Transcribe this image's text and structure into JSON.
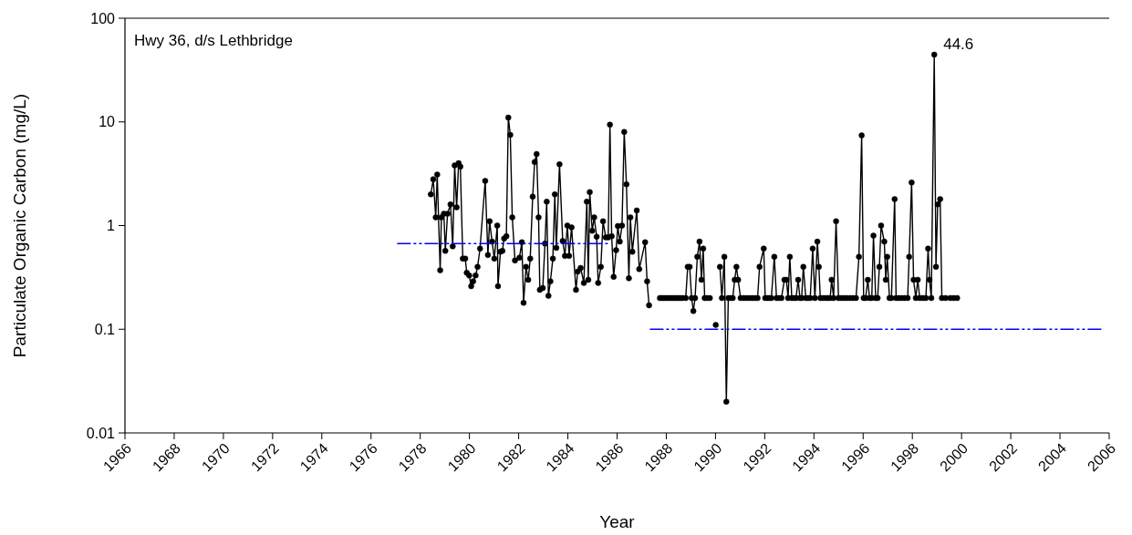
{
  "chart_data": {
    "type": "line",
    "xlabel": "Year",
    "ylabel": "Particulate Organic Carbon (mg/L)",
    "log": "y",
    "xlim": [
      1966,
      2006
    ],
    "xticks": [
      1966,
      1968,
      1970,
      1972,
      1974,
      1976,
      1978,
      1980,
      1982,
      1984,
      1986,
      1988,
      1990,
      1992,
      1994,
      1996,
      1998,
      2000,
      2002,
      2004,
      2006
    ],
    "ylim": [
      0.01,
      100
    ],
    "yticks": [
      0.01,
      0.1,
      1,
      10,
      100
    ],
    "annotations": [
      "Hwy 36, d/s Lethbridge",
      {
        "text": "44.6",
        "x": 1998.89,
        "y": 44.6
      }
    ],
    "series": [
      {
        "color": "#000000",
        "marker": "circle",
        "line_style": "solid",
        "x": [
          1978.43,
          1978.53,
          1978.63,
          1978.69,
          1978.81,
          1978.86,
          1978.96,
          1979.02,
          1979.11,
          1979.23,
          1979.32,
          1979.4,
          1979.48,
          1979.56,
          1979.63,
          1979.73,
          1979.83,
          1979.89,
          1979.99,
          1980.07,
          1980.15,
          1980.25,
          1980.33,
          1980.43,
          1980.64,
          1980.75,
          1980.82,
          1980.92,
          1981.01,
          1981.13,
          1981.16,
          1981.26,
          1981.34,
          1981.41,
          1981.5,
          1981.58,
          1981.66,
          1981.74,
          1981.85,
          1982.03,
          1982.13,
          1982.2,
          1982.3,
          1982.39,
          1982.47,
          1982.57,
          1982.65,
          1982.73,
          1982.81,
          1982.86,
          1982.98,
          1983.07,
          1983.14,
          1983.21,
          1983.29,
          1983.39,
          1983.47,
          1983.53,
          1983.66,
          1983.79,
          1983.88,
          1983.98,
          1984.05,
          1984.15,
          1984.33,
          1984.4,
          1984.52,
          1984.65,
          1984.77,
          1984.83,
          1984.89,
          1984.99,
          1985.07,
          1985.17,
          1985.23,
          1985.34,
          1985.43,
          1985.54,
          1985.64,
          1985.71,
          1985.78,
          1985.86,
          1985.96,
          1986.03,
          1986.11,
          1986.2,
          1986.29,
          1986.38,
          1986.48,
          1986.54,
          1986.62,
          1986.8,
          1986.9,
          1987.14,
          1987.22,
          1987.3,
          1987.5,
          1987.74,
          1987.82,
          1987.9,
          1987.99,
          1988.07,
          1988.16,
          1988.24,
          1988.32,
          1988.41,
          1988.49,
          1988.57,
          1988.66,
          1988.79,
          1988.87,
          1988.95,
          1989.03,
          1989.1,
          1989.17,
          1989.26,
          1989.35,
          1989.43,
          1989.5,
          1989.56,
          1989.66,
          1989.77,
          1989.9,
          1990.01,
          1990.1,
          1990.18,
          1990.26,
          1990.36,
          1990.44,
          1990.52,
          1990.61,
          1990.7,
          1990.78,
          1990.85,
          1990.92,
          1991.02,
          1991.14,
          1991.26,
          1991.38,
          1991.5,
          1991.62,
          1991.71,
          1991.79,
          1991.96,
          1992.02,
          1992.1,
          1992.18,
          1992.27,
          1992.39,
          1992.48,
          1992.58,
          1992.68,
          1992.8,
          1992.88,
          1992.95,
          1993.02,
          1993.1,
          1993.18,
          1993.27,
          1993.36,
          1993.43,
          1993.5,
          1993.57,
          1993.67,
          1993.76,
          1993.85,
          1993.95,
          1994.04,
          1994.14,
          1994.2,
          1994.26,
          1994.36,
          1994.47,
          1994.57,
          1994.66,
          1994.72,
          1994.8,
          1994.9,
          1995,
          1995.1,
          1995.21,
          1995.33,
          1995.46,
          1995.58,
          1995.71,
          1995.83,
          1995.94,
          1996.02,
          1996.1,
          1996.19,
          1996.26,
          1996.35,
          1996.42,
          1996.51,
          1996.59,
          1996.66,
          1996.73,
          1996.86,
          1996.92,
          1996.98,
          1997.07,
          1997.15,
          1997.28,
          1997.34,
          1997.45,
          1997.56,
          1997.68,
          1997.81,
          1997.87,
          1997.97,
          1998.05,
          1998.14,
          1998.22,
          1998.3,
          1998.43,
          1998.55,
          1998.64,
          1998.7,
          1998.77,
          1998.89,
          1998.96,
          1999.03,
          1999.13,
          1999.2,
          1999.35,
          1999.54,
          1999.68,
          1999.82
        ],
        "values": [
          2.0,
          2.8,
          1.2,
          3.1,
          0.37,
          1.2,
          1.3,
          0.57,
          1.3,
          1.6,
          0.63,
          3.8,
          1.5,
          4.0,
          3.7,
          0.48,
          0.48,
          0.35,
          0.33,
          0.26,
          0.29,
          0.33,
          0.4,
          0.6,
          2.7,
          0.52,
          1.1,
          0.7,
          0.48,
          1.0,
          0.26,
          0.56,
          0.57,
          0.75,
          0.79,
          11,
          7.5,
          1.2,
          0.46,
          0.49,
          0.69,
          0.18,
          0.4,
          0.3,
          0.48,
          1.9,
          4.1,
          4.9,
          1.2,
          0.24,
          0.25,
          0.67,
          1.7,
          0.21,
          0.29,
          0.48,
          2.0,
          0.61,
          3.9,
          0.71,
          0.51,
          1.0,
          0.51,
          0.96,
          0.24,
          0.36,
          0.39,
          0.28,
          1.7,
          0.3,
          2.1,
          0.89,
          1.2,
          0.78,
          0.28,
          0.4,
          1.1,
          0.77,
          0.77,
          9.4,
          0.79,
          0.32,
          0.58,
          0.99,
          0.7,
          1.0,
          8.0,
          2.5,
          0.31,
          1.2,
          0.56,
          1.4,
          0.38,
          0.69,
          0.29,
          0.17,
          null,
          0.2,
          0.2,
          0.2,
          0.2,
          0.2,
          0.2,
          0.2,
          0.2,
          0.2,
          0.2,
          0.2,
          0.2,
          0.2,
          0.4,
          0.4,
          0.2,
          0.15,
          0.2,
          0.5,
          0.7,
          0.3,
          0.6,
          0.2,
          0.2,
          0.2,
          null,
          0.11,
          null,
          0.4,
          0.2,
          0.5,
          0.02,
          0.2,
          0.2,
          0.2,
          0.3,
          0.4,
          0.3,
          0.2,
          0.2,
          0.2,
          0.2,
          0.2,
          0.2,
          0.2,
          0.4,
          0.6,
          0.2,
          0.2,
          0.2,
          0.2,
          0.5,
          0.2,
          0.2,
          0.2,
          0.3,
          0.3,
          0.2,
          0.5,
          0.2,
          0.2,
          0.2,
          0.3,
          0.2,
          0.2,
          0.4,
          0.2,
          0.2,
          0.2,
          0.6,
          0.2,
          0.7,
          0.4,
          0.2,
          0.2,
          0.2,
          0.2,
          0.2,
          0.3,
          0.2,
          1.1,
          0.2,
          0.2,
          0.2,
          0.2,
          0.2,
          0.2,
          0.2,
          0.5,
          7.4,
          0.2,
          0.2,
          0.3,
          0.2,
          0.2,
          0.8,
          0.2,
          0.2,
          0.4,
          1.0,
          0.7,
          0.3,
          0.5,
          0.2,
          0.2,
          1.8,
          0.2,
          0.2,
          0.2,
          0.2,
          0.2,
          0.5,
          2.6,
          0.3,
          0.2,
          0.3,
          0.2,
          0.2,
          0.2,
          0.6,
          0.3,
          0.2,
          44.6,
          0.4,
          1.6,
          1.8,
          0.2,
          0.2,
          0.2,
          0.2,
          0.2
        ]
      },
      {
        "color": "#0000ff",
        "marker": "none",
        "line_style": "dashed",
        "x": [
          1977.08,
          1985.69
        ],
        "values": [
          0.67,
          0.67
        ]
      },
      {
        "color": "#0000ff",
        "marker": "none",
        "line_style": "dashed",
        "x": [
          1987.35,
          2005.78
        ],
        "values": [
          0.1,
          0.1
        ]
      }
    ]
  }
}
